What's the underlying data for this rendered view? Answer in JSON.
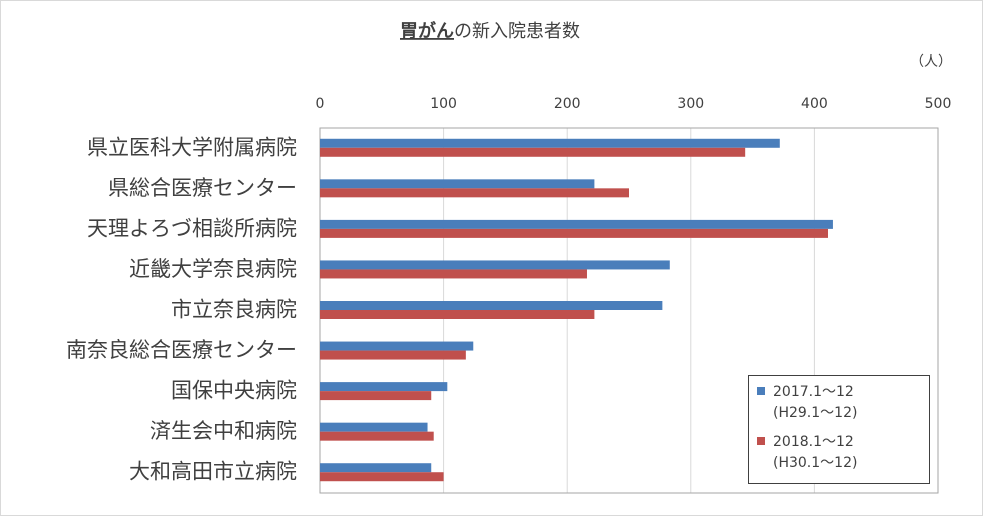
{
  "chart_data": {
    "type": "hbar",
    "title": {
      "emphasis": "胃がん",
      "rest": "の新入院患者数"
    },
    "unit_label": "（人）",
    "categories": [
      "県立医科大学附属病院",
      "県総合医療センター",
      "天理よろづ相談所病院",
      "近畿大学奈良病院",
      "市立奈良病院",
      "南奈良総合医療センター",
      "国保中央病院",
      "済生会中和病院",
      "大和高田市立病院"
    ],
    "series": [
      {
        "name": "2017.1～12\n(H29.1～12)",
        "color": "#4a7ebb",
        "values": [
          372,
          222,
          415,
          283,
          277,
          124,
          103,
          87,
          90
        ]
      },
      {
        "name": "2018.1～12\n(H30.1～12)",
        "color": "#c0504d",
        "values": [
          344,
          250,
          411,
          216,
          222,
          118,
          90,
          92,
          100
        ]
      }
    ],
    "xlim": [
      0,
      500
    ],
    "xticks": [
      0,
      100,
      200,
      300,
      400,
      500
    ],
    "grid": true,
    "legend": "bottom-right"
  }
}
